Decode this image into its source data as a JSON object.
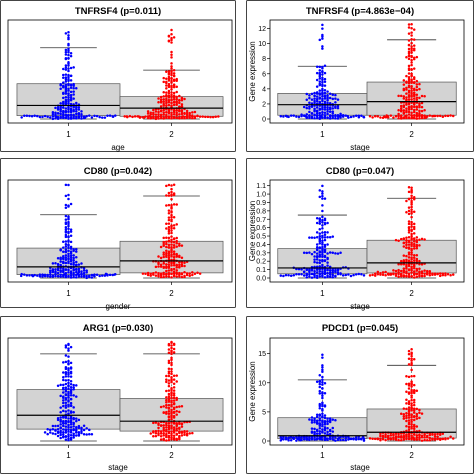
{
  "chart_data": [
    {
      "type": "box_swarm",
      "title": "TNFRSF4 (p=0.011)",
      "xlabel": "age",
      "ylabel": "",
      "categories": [
        "1",
        "2"
      ],
      "ylim": [
        0,
        14
      ],
      "yticks": [],
      "series": [
        {
          "category": "1",
          "color": "#0000ff",
          "q1": 0.5,
          "median": 2.0,
          "q3": 5.2,
          "whisker_low": 0,
          "whisker_high": 10.5,
          "max": 13.5,
          "n": 200
        },
        {
          "category": "2",
          "color": "#ff0000",
          "q1": 0.4,
          "median": 1.6,
          "q3": 3.3,
          "whisker_low": 0,
          "whisker_high": 7.2,
          "max": 13.5,
          "n": 240
        }
      ]
    },
    {
      "type": "box_swarm",
      "title": "TNFRSF4 (p=4.863e−04)",
      "xlabel": "stage",
      "ylabel": "Gene expression",
      "categories": [
        "1",
        "2"
      ],
      "ylim": [
        0,
        12.6
      ],
      "yticks": [
        "0",
        "2",
        "4",
        "6",
        "8",
        "10",
        "12"
      ],
      "series": [
        {
          "category": "1",
          "color": "#0000ff",
          "q1": 0.5,
          "median": 1.9,
          "q3": 3.4,
          "whisker_low": 0,
          "whisker_high": 7.0,
          "max": 12.6,
          "n": 210
        },
        {
          "category": "2",
          "color": "#ff0000",
          "q1": 0.5,
          "median": 2.3,
          "q3": 4.9,
          "whisker_low": 0,
          "whisker_high": 10.5,
          "max": 12.6,
          "n": 220
        }
      ]
    },
    {
      "type": "box_swarm",
      "title": "CD80 (p=0.042)",
      "xlabel": "gender",
      "ylabel": "",
      "categories": [
        "1",
        "2"
      ],
      "ylim": [
        0,
        1.1
      ],
      "yticks": [],
      "series": [
        {
          "category": "1",
          "color": "#0000ff",
          "q1": 0.04,
          "median": 0.13,
          "q3": 0.35,
          "whisker_low": 0,
          "whisker_high": 0.74,
          "max": 1.1,
          "n": 220
        },
        {
          "category": "2",
          "color": "#ff0000",
          "q1": 0.06,
          "median": 0.2,
          "q3": 0.43,
          "whisker_low": 0,
          "whisker_high": 0.96,
          "max": 1.1,
          "n": 210
        }
      ]
    },
    {
      "type": "box_swarm",
      "title": "CD80 (p=0.047)",
      "xlabel": "stage",
      "ylabel": "Gene expression",
      "categories": [
        "1",
        "2"
      ],
      "ylim": [
        0,
        1.12
      ],
      "yticks": [
        "0.0",
        "0.1",
        "0.2",
        "0.3",
        "0.4",
        "0.5",
        "0.6",
        "0.7",
        "0.8",
        "0.9",
        "1.0",
        "1.1"
      ],
      "series": [
        {
          "category": "1",
          "color": "#0000ff",
          "q1": 0.05,
          "median": 0.12,
          "q3": 0.35,
          "whisker_low": 0,
          "whisker_high": 0.75,
          "max": 1.1,
          "n": 210
        },
        {
          "category": "2",
          "color": "#ff0000",
          "q1": 0.06,
          "median": 0.18,
          "q3": 0.45,
          "whisker_low": 0,
          "whisker_high": 0.95,
          "max": 1.1,
          "n": 220
        }
      ]
    },
    {
      "type": "box_swarm",
      "title": "ARG1 (p=0.030)",
      "xlabel": "stage",
      "ylabel": "",
      "categories": [
        "1",
        "2"
      ],
      "ylim": [
        0,
        1.0
      ],
      "yticks": [],
      "series": [
        {
          "category": "1",
          "color": "#0000ff",
          "q1": 0.12,
          "median": 0.26,
          "q3": 0.52,
          "whisker_low": 0,
          "whisker_high": 0.88,
          "max": 1.0,
          "n": 210
        },
        {
          "category": "2",
          "color": "#ff0000",
          "q1": 0.1,
          "median": 0.2,
          "q3": 0.43,
          "whisker_low": 0,
          "whisker_high": 0.88,
          "max": 1.0,
          "n": 210
        }
      ]
    },
    {
      "type": "box_swarm",
      "title": "PDCD1 (p=0.045)",
      "xlabel": "stage",
      "ylabel": "Gene expression",
      "categories": [
        "1",
        "2"
      ],
      "ylim": [
        0,
        17
      ],
      "yticks": [
        "0",
        "5",
        "10",
        "15"
      ],
      "series": [
        {
          "category": "1",
          "color": "#0000ff",
          "q1": 0.4,
          "median": 0.9,
          "q3": 4.0,
          "whisker_low": 0,
          "whisker_high": 10.5,
          "max": 16,
          "n": 210
        },
        {
          "category": "2",
          "color": "#ff0000",
          "q1": 0.5,
          "median": 1.5,
          "q3": 5.5,
          "whisker_low": 0,
          "whisker_high": 13.0,
          "max": 16.5,
          "n": 220
        }
      ]
    }
  ]
}
